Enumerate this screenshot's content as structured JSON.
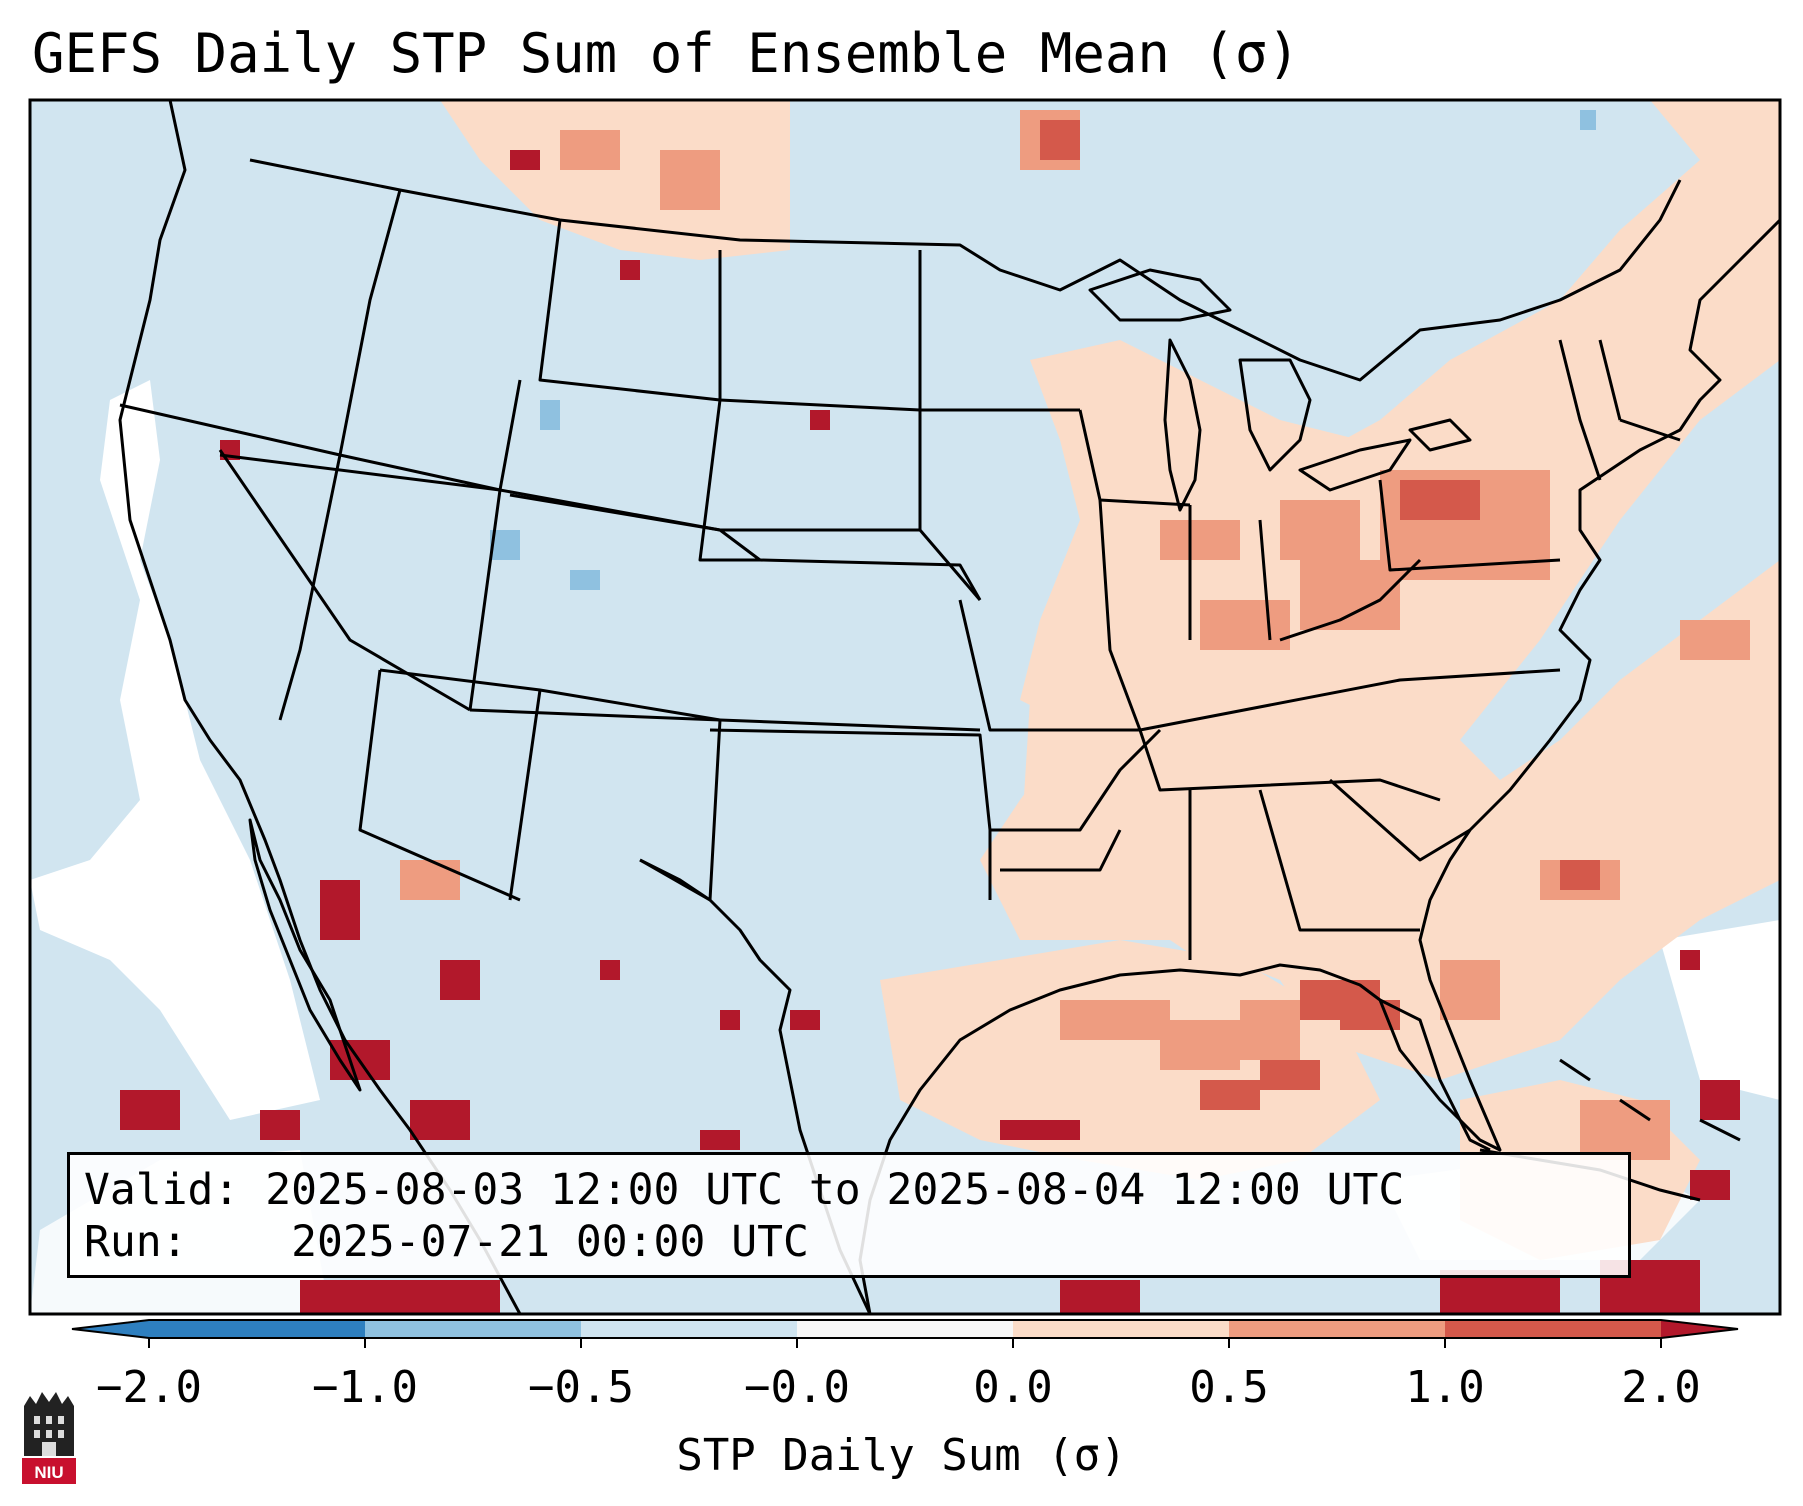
{
  "title": "GEFS Daily STP Sum of Ensemble Mean (σ)",
  "info": {
    "valid_label": "Valid:",
    "valid_value": "2025-08-03 12:00 UTC to 2025-08-04 12:00 UTC",
    "run_label": "Run:",
    "run_value": "2025-07-21 00:00 UTC"
  },
  "colorbar": {
    "label": "STP Daily Sum (σ)",
    "ticks": [
      "−2.0",
      "−1.0",
      "−0.5",
      "−0.0",
      "0.0",
      "0.5",
      "1.0",
      "2.0"
    ],
    "colors": [
      "#2e7fbf",
      "#8fc1e0",
      "#cfe4f0",
      "#f7f7f7",
      "#fbdcc8",
      "#ee9c80",
      "#d4594b",
      "#b2182b"
    ],
    "extend": "both"
  },
  "logo": {
    "text": "NIU",
    "name": "Northern Illinois University"
  },
  "map": {
    "ocean_color": "#d0e3ef",
    "land_color": "#d1e5f0",
    "projection": "Lambert Conformal (CONUS)"
  }
}
